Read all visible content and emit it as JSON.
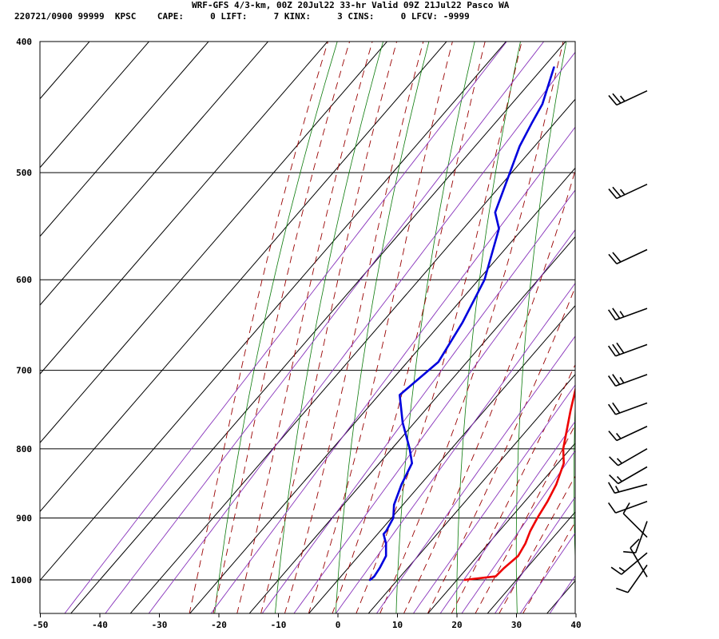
{
  "header": {
    "title": "WRF-GFS 4/3-km, 00Z 20Jul22 33-hr Valid 09Z 21Jul22 Pasco WA",
    "date_code": "220721/0900",
    "station_num": "99999",
    "station_id": "KPSC",
    "cape_label": "CAPE:",
    "cape_value": "0",
    "lift_label": "LIFT:",
    "lift_value": "7",
    "kinx_label": "KINX:",
    "kinx_value": "3",
    "cins_label": "CINS:",
    "cins_value": "0",
    "lfcv_label": "LFCV:",
    "lfcv_value": "-9999"
  },
  "chart_data": {
    "type": "line",
    "title": "WRF-GFS 4/3-km, 00Z 20Jul22 33-hr Valid 09Z 21Jul22 Pasco WA",
    "xlabel": "",
    "ylabel": "",
    "x_ticks": [
      -50,
      -40,
      -30,
      -20,
      -10,
      0,
      10,
      20,
      30,
      40
    ],
    "y_ticks": [
      400,
      500,
      600,
      700,
      800,
      900,
      1000
    ],
    "xlim": [
      -50,
      40
    ],
    "ylim": [
      1040,
      400
    ],
    "y_scale": "log",
    "grid": true,
    "colors": {
      "temperature": "#ee0000",
      "dewpoint": "#0000dd",
      "isotherm": "#000000",
      "dry_adiabat": "#0a7a0a",
      "moist_adiabat": "#990000",
      "mixing_ratio": "#8833bb"
    },
    "series": [
      {
        "key": "temperature",
        "points": [
          [
            1000,
            21.3
          ],
          [
            994,
            26.0
          ],
          [
            980,
            26.2
          ],
          [
            960,
            26.8
          ],
          [
            940,
            26.2
          ],
          [
            920,
            25.2
          ],
          [
            900,
            24.5
          ],
          [
            875,
            23.8
          ],
          [
            850,
            22.8
          ],
          [
            820,
            21.0
          ],
          [
            800,
            18.8
          ],
          [
            750,
            14.5
          ],
          [
            700,
            10.2
          ],
          [
            650,
            4.8
          ],
          [
            600,
            -0.3
          ],
          [
            550,
            -5.5
          ],
          [
            500,
            -11.0
          ],
          [
            450,
            -17.0
          ],
          [
            418,
            -21.8
          ]
        ]
      },
      {
        "key": "dewpoint",
        "points": [
          [
            1000,
            5.4
          ],
          [
            994,
            5.6
          ],
          [
            980,
            5.3
          ],
          [
            960,
            4.6
          ],
          [
            940,
            2.8
          ],
          [
            925,
            1.0
          ],
          [
            920,
            1.0
          ],
          [
            900,
            0.3
          ],
          [
            880,
            -1.5
          ],
          [
            850,
            -3.2
          ],
          [
            820,
            -4.5
          ],
          [
            800,
            -7.0
          ],
          [
            765,
            -12.0
          ],
          [
            730,
            -16.5
          ],
          [
            690,
            -14.8
          ],
          [
            645,
            -16.5
          ],
          [
            600,
            -19.0
          ],
          [
            550,
            -24.0
          ],
          [
            535,
            -27.0
          ],
          [
            500,
            -30.3
          ],
          [
            478,
            -32.5
          ],
          [
            460,
            -33.8
          ],
          [
            445,
            -34.8
          ],
          [
            418,
            -38.2
          ]
        ]
      }
    ],
    "wind_barbs": [
      {
        "pressure": 995,
        "dir": 330,
        "speed": 10
      },
      {
        "pressure": 975,
        "dir": 215,
        "speed": 10
      },
      {
        "pressure": 955,
        "dir": 230,
        "speed": 15
      },
      {
        "pressure": 930,
        "dir": 315,
        "speed": 10
      },
      {
        "pressure": 905,
        "dir": 200,
        "speed": 10
      },
      {
        "pressure": 875,
        "dir": 250,
        "speed": 10
      },
      {
        "pressure": 850,
        "dir": 255,
        "speed": 15
      },
      {
        "pressure": 825,
        "dir": 240,
        "speed": 15
      },
      {
        "pressure": 800,
        "dir": 240,
        "speed": 15
      },
      {
        "pressure": 770,
        "dir": 245,
        "speed": 15
      },
      {
        "pressure": 740,
        "dir": 250,
        "speed": 20
      },
      {
        "pressure": 705,
        "dir": 250,
        "speed": 25
      },
      {
        "pressure": 670,
        "dir": 250,
        "speed": 30
      },
      {
        "pressure": 630,
        "dir": 250,
        "speed": 25
      },
      {
        "pressure": 570,
        "dir": 245,
        "speed": 20
      },
      {
        "pressure": 510,
        "dir": 245,
        "speed": 25
      },
      {
        "pressure": 435,
        "dir": 245,
        "speed": 25
      }
    ],
    "isotherm_values": [
      -120,
      -110,
      -100,
      -90,
      -80,
      -70,
      -60,
      -50,
      -40,
      -30,
      -20,
      -10,
      0,
      10,
      20,
      30,
      40
    ],
    "dry_adiabat_thetas_C": [
      -20,
      -10,
      0,
      10,
      20,
      30,
      40,
      50,
      60,
      70,
      80,
      90,
      100,
      110
    ],
    "moist_adiabat_start_C": [
      -20,
      -16,
      -12,
      -8,
      -4,
      0,
      4,
      8,
      12,
      16,
      20,
      24,
      28,
      32,
      36
    ],
    "mixing_ratio_gkg": [
      0.1,
      0.2,
      0.4,
      1,
      2,
      3,
      5,
      8,
      12,
      16,
      20,
      28,
      36,
      48
    ]
  }
}
